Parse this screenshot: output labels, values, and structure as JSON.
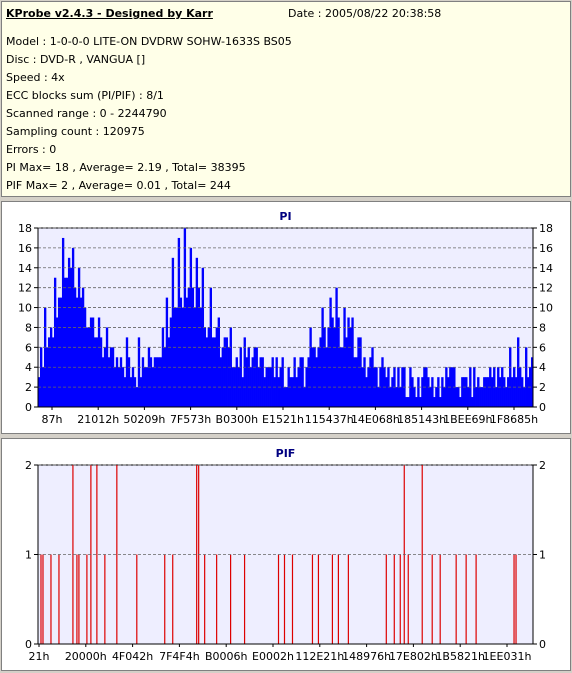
{
  "info": {
    "title": "KProbe v2.4.3 - Designed by Karr",
    "date": "Date : 2005/08/22 20:38:58",
    "lines": [
      "Model : 1-0-0-0 LITE-ON DVDRW SOHW-1633S BS05",
      "Disc : DVD-R , VANGUA []",
      "Speed : 4x",
      "ECC blocks sum (PI/PIF) : 8/1",
      "Scanned range : 0 - 2244790",
      "Sampling count : 120975",
      "Errors : 0",
      "PI Max= 18 , Average= 2.19 , Total= 38395",
      "PIF Max= 2 , Average= 0.01 , Total= 244"
    ]
  },
  "colors": {
    "pi": "#0000ff",
    "pif": "#dd0000",
    "plot_bg": "#eeeeff",
    "title": "#000080"
  },
  "chart_data": [
    {
      "type": "bar",
      "title": "PI",
      "ylim": [
        0,
        18
      ],
      "yticks": [
        0,
        2,
        4,
        6,
        8,
        10,
        12,
        14,
        16,
        18
      ],
      "grid": true,
      "xtick_labels": [
        "87h",
        "21012h",
        "50209h",
        "7F573h",
        "B0300h",
        "E1521h",
        "115437h",
        "14E068h",
        "185143h",
        "1BEE69h",
        "1F8685h"
      ],
      "samples": 248,
      "profile_description_points": [
        [
          0,
          4.2
        ],
        [
          3,
          5.5
        ],
        [
          8,
          8.5
        ],
        [
          12,
          10.5
        ],
        [
          16,
          12.5
        ],
        [
          20,
          11
        ],
        [
          25,
          9
        ],
        [
          30,
          7
        ],
        [
          35,
          5
        ],
        [
          40,
          4
        ],
        [
          45,
          3.6
        ],
        [
          50,
          3.8
        ],
        [
          55,
          4.5
        ],
        [
          60,
          6
        ],
        [
          65,
          8.5
        ],
        [
          70,
          11
        ],
        [
          75,
          12
        ],
        [
          80,
          11
        ],
        [
          85,
          8
        ],
        [
          90,
          6.2
        ],
        [
          95,
          5.5
        ],
        [
          100,
          5
        ],
        [
          105,
          4.8
        ],
        [
          110,
          4.8
        ],
        [
          115,
          3.8
        ],
        [
          120,
          3.6
        ],
        [
          125,
          3.5
        ],
        [
          130,
          3.8
        ],
        [
          135,
          4
        ],
        [
          140,
          6
        ],
        [
          145,
          7.5
        ],
        [
          150,
          8
        ],
        [
          155,
          7.2
        ],
        [
          160,
          5.5
        ],
        [
          165,
          4.2
        ],
        [
          170,
          3.8
        ],
        [
          180,
          2.6
        ],
        [
          190,
          2.5
        ],
        [
          200,
          2.5
        ],
        [
          210,
          2.4
        ],
        [
          220,
          2.5
        ],
        [
          230,
          2.8
        ],
        [
          240,
          3.2
        ],
        [
          247,
          3.5
        ]
      ],
      "spikes": [
        [
          12,
          17
        ],
        [
          17,
          16
        ],
        [
          15,
          15
        ],
        [
          20,
          14
        ],
        [
          8,
          13
        ],
        [
          22,
          12
        ],
        [
          3,
          10
        ],
        [
          27,
          9
        ],
        [
          34,
          8
        ],
        [
          44,
          7
        ],
        [
          50,
          6.5
        ],
        [
          67,
          15
        ],
        [
          70,
          17
        ],
        [
          73,
          18
        ],
        [
          76,
          16
        ],
        [
          79,
          15
        ],
        [
          82,
          14
        ],
        [
          86,
          12
        ],
        [
          64,
          11
        ],
        [
          90,
          9
        ],
        [
          96,
          8
        ],
        [
          103,
          7
        ],
        [
          112,
          5
        ],
        [
          122,
          5.2
        ],
        [
          128,
          5
        ],
        [
          136,
          8
        ],
        [
          142,
          10
        ],
        [
          146,
          11
        ],
        [
          149,
          12
        ],
        [
          153,
          10
        ],
        [
          157,
          9
        ],
        [
          161,
          7
        ],
        [
          167,
          5.5
        ],
        [
          182,
          4.2
        ],
        [
          193,
          3.8
        ],
        [
          206,
          3.5
        ],
        [
          226,
          3.5
        ],
        [
          236,
          5.5
        ],
        [
          240,
          7
        ],
        [
          244,
          6
        ]
      ]
    },
    {
      "type": "bar",
      "title": "PIF",
      "ylim": [
        0,
        2
      ],
      "yticks": [
        0,
        1,
        2
      ],
      "grid": true,
      "xtick_labels": [
        "21h",
        "20000h",
        "4F042h",
        "7F4F4h",
        "B0006h",
        "E0002h",
        "112E21h",
        "148976h",
        "17E802h",
        "1B5821h",
        "1EE031h"
      ],
      "samples": 248,
      "values_eq_2": [
        17,
        26,
        29,
        39,
        79,
        80,
        183,
        192
      ],
      "values_eq_1": [
        1,
        2,
        6,
        10,
        19,
        20,
        24,
        33,
        49,
        63,
        67,
        83,
        89,
        96,
        103,
        120,
        123,
        127,
        137,
        140,
        147,
        150,
        155,
        174,
        178,
        181,
        185,
        197,
        201,
        209,
        214,
        219,
        238,
        239
      ]
    }
  ]
}
